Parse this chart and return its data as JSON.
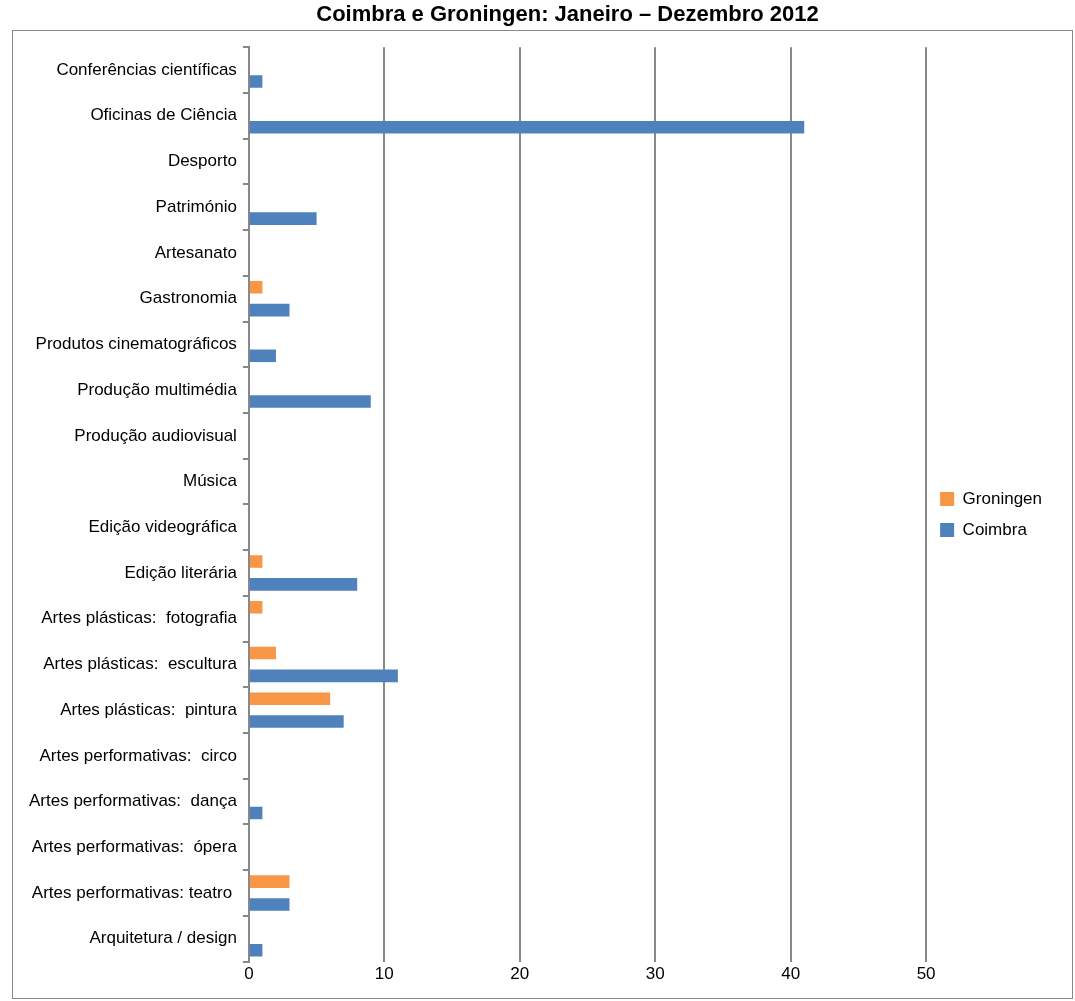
{
  "chart_data": {
    "type": "bar",
    "orientation": "horizontal",
    "title": "Coimbra e Groningen: Janeiro – Dezembro 2012",
    "categories": [
      "Conferências científicas",
      "Oficinas de Ciência",
      "Desporto",
      "Património",
      "Artesanato",
      "Gastronomia",
      "Produtos cinematográficos",
      "Produção multimédia",
      "Produção audiovisual",
      "Música",
      "Edição videográfica",
      "Edição literária",
      "Artes plásticas:  fotografia",
      "Artes plásticas:  escultura",
      "Artes plásticas:  pintura",
      "Artes performativas:  circo",
      "Artes performativas:  dança",
      "Artes performativas:  ópera",
      "Artes performativas: teatro ",
      "Arquitetura / design"
    ],
    "series": [
      {
        "name": "Groningen",
        "color": "#f79646",
        "values": [
          0,
          0,
          0,
          0,
          0,
          1,
          0,
          0,
          0,
          0,
          0,
          1,
          1,
          2,
          6,
          0,
          0,
          0,
          3,
          0
        ]
      },
      {
        "name": "Coimbra",
        "color": "#4f81bd",
        "values": [
          1,
          41,
          0,
          5,
          0,
          3,
          2,
          9,
          0,
          0,
          0,
          8,
          0,
          11,
          7,
          0,
          1,
          0,
          3,
          1
        ]
      }
    ],
    "xlim": [
      0,
      50
    ],
    "xticks": [
      0,
      10,
      20,
      30,
      40,
      50
    ],
    "grid": "x",
    "legend": "right"
  }
}
